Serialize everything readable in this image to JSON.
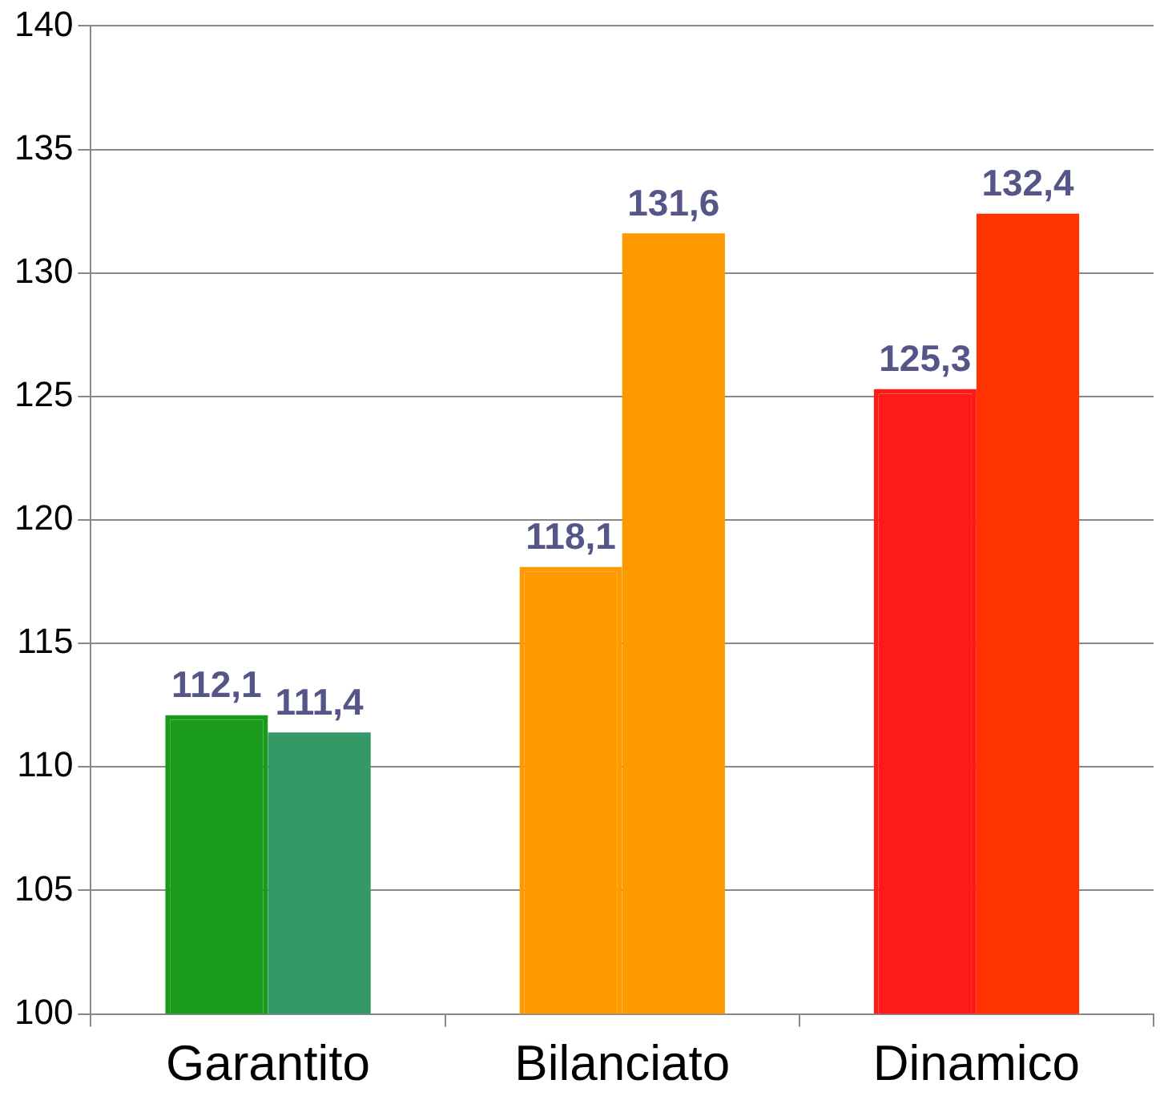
{
  "chart_data": {
    "type": "bar",
    "categories": [
      "Garantito",
      "Bilanciato",
      "Dinamico"
    ],
    "series": [
      {
        "colors": [
          "#1a9a1a",
          "#ff9900",
          "#ff1a1a"
        ],
        "line_style": "dashed",
        "values": [
          112.1,
          118.1,
          125.3
        ],
        "value_labels": [
          "112,1",
          "118,1",
          "125,3"
        ]
      },
      {
        "colors": [
          "#339966",
          "#ff9900",
          "#ff3300"
        ],
        "values": [
          111.4,
          131.6,
          132.4
        ],
        "value_labels": [
          "111,4",
          "131,6",
          "132,4"
        ]
      }
    ],
    "ylim": [
      100,
      140
    ],
    "yticks": [
      100,
      105,
      110,
      115,
      120,
      125,
      130,
      135,
      140
    ],
    "grid": "y",
    "legend": false
  }
}
